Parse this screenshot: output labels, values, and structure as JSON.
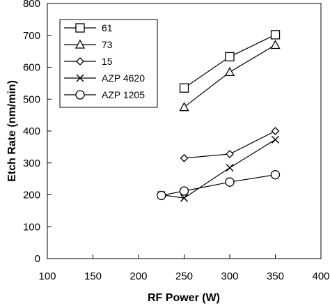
{
  "chart_data": {
    "type": "line",
    "xlabel": "RF Power (W)",
    "ylabel": "Etch Rate (nm/min)",
    "xlim": [
      100,
      400
    ],
    "ylim": [
      0,
      800
    ],
    "xticks": [
      100,
      150,
      200,
      250,
      300,
      350,
      400
    ],
    "yticks": [
      0,
      100,
      200,
      300,
      400,
      500,
      600,
      700,
      800
    ],
    "grid": false,
    "legend_position": "top-left",
    "line_color": "#000000",
    "series": [
      {
        "name": "61",
        "marker": "square",
        "x": [
          250,
          300,
          350
        ],
        "y": [
          535,
          633,
          702
        ]
      },
      {
        "name": "73",
        "marker": "triangle",
        "x": [
          250,
          300,
          350
        ],
        "y": [
          475,
          585,
          670
        ]
      },
      {
        "name": "15",
        "marker": "diamond",
        "x": [
          250,
          300,
          350
        ],
        "y": [
          315,
          328,
          400
        ]
      },
      {
        "name": "AZP 4620",
        "marker": "x",
        "x": [
          225,
          250,
          300,
          350
        ],
        "y": [
          200,
          190,
          285,
          373
        ]
      },
      {
        "name": "AZP 1205",
        "marker": "circle",
        "x": [
          225,
          250,
          300,
          350
        ],
        "y": [
          198,
          212,
          240,
          263
        ]
      }
    ]
  }
}
